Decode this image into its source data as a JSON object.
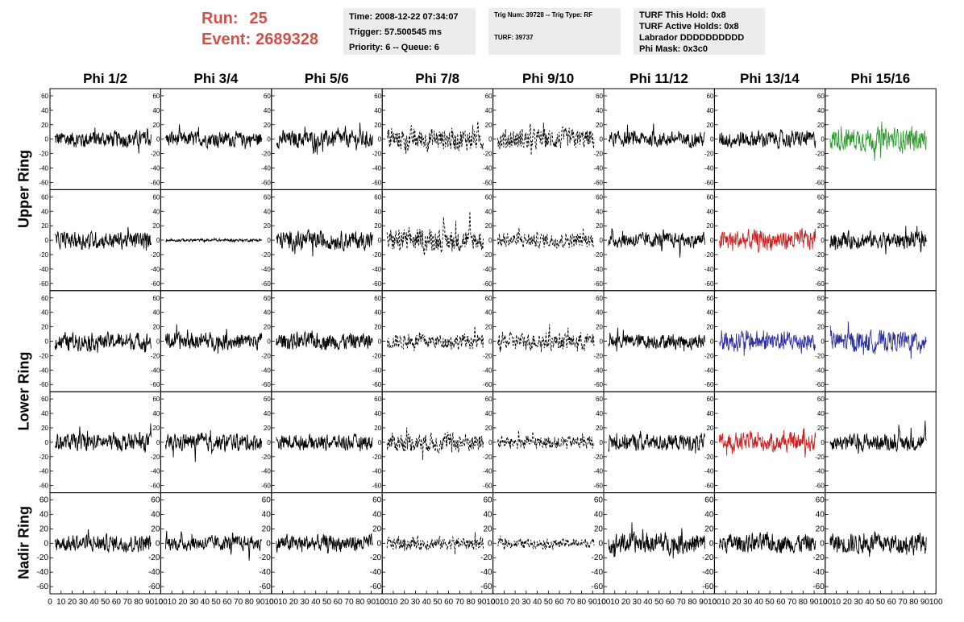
{
  "header": {
    "run_label": "Run:",
    "run_value": "25",
    "event_label": "Event:",
    "event_value": "2689328"
  },
  "info": {
    "time": "Time: 2008-12-22 07:34:07",
    "trigger": "Trigger: 57.500545 ms",
    "priority": "Priority: 6 -- Queue: 6",
    "trig_num": "Trig Num: 39728 -- Trig Type: RF",
    "turf": "TURF: 39737",
    "turf_this_hold": "TURF This Hold: 0x8",
    "turf_active_holds": "TURF Active Holds: 0x8",
    "labrador": "Labrador DDDDDDDDDD",
    "phi_mask": "Phi Mask: 0x3c0"
  },
  "chart_data": {
    "type": "line",
    "columns": [
      "Phi 1/2",
      "Phi 3/4",
      "Phi 5/6",
      "Phi 7/8",
      "Phi 9/10",
      "Phi 11/12",
      "Phi 13/14",
      "Phi 15/16"
    ],
    "rows": [
      "Upper Ring",
      "Lower Ring",
      "Nadir Ring"
    ],
    "row_panel_spans": [
      2,
      2,
      1
    ],
    "ylim": [
      -70,
      70
    ],
    "yticks": [
      -60,
      -40,
      -20,
      0,
      20,
      40,
      60
    ],
    "xlim": [
      0,
      100
    ],
    "xtick_labels": [
      "0",
      "10",
      "20",
      "30",
      "40",
      "50",
      "60",
      "70",
      "80",
      "90",
      "100"
    ],
    "samples_per_trace": 260,
    "trace_styles": {
      "normal": "#000000",
      "masked": "dashed",
      "upper_trigger": "#2a9a2a",
      "red_trigger": "#cc2222",
      "blue_trigger": "#2b2fa0"
    },
    "panels": [
      [
        "normal",
        "normal",
        "normal",
        "masked",
        "masked",
        "normal",
        "normal",
        "upper_trigger"
      ],
      [
        "normal",
        "normal",
        "normal",
        "masked",
        "masked",
        "normal",
        "red_trigger",
        "normal"
      ],
      [
        "normal",
        "normal",
        "normal",
        "masked",
        "masked",
        "normal",
        "blue_trigger",
        "blue_trigger"
      ],
      [
        "normal",
        "normal",
        "normal",
        "masked",
        "masked",
        "normal",
        "red_trigger",
        "normal"
      ],
      [
        "normal",
        "normal",
        "normal",
        "masked",
        "masked",
        "normal",
        "normal",
        "normal"
      ]
    ],
    "amplitude": [
      [
        18,
        16,
        18,
        24,
        22,
        16,
        18,
        24
      ],
      [
        18,
        3,
        20,
        24,
        16,
        16,
        22,
        18
      ],
      [
        18,
        18,
        18,
        16,
        18,
        16,
        22,
        22
      ],
      [
        18,
        18,
        16,
        20,
        14,
        18,
        20,
        18
      ],
      [
        18,
        16,
        18,
        14,
        10,
        22,
        20,
        22
      ]
    ]
  }
}
